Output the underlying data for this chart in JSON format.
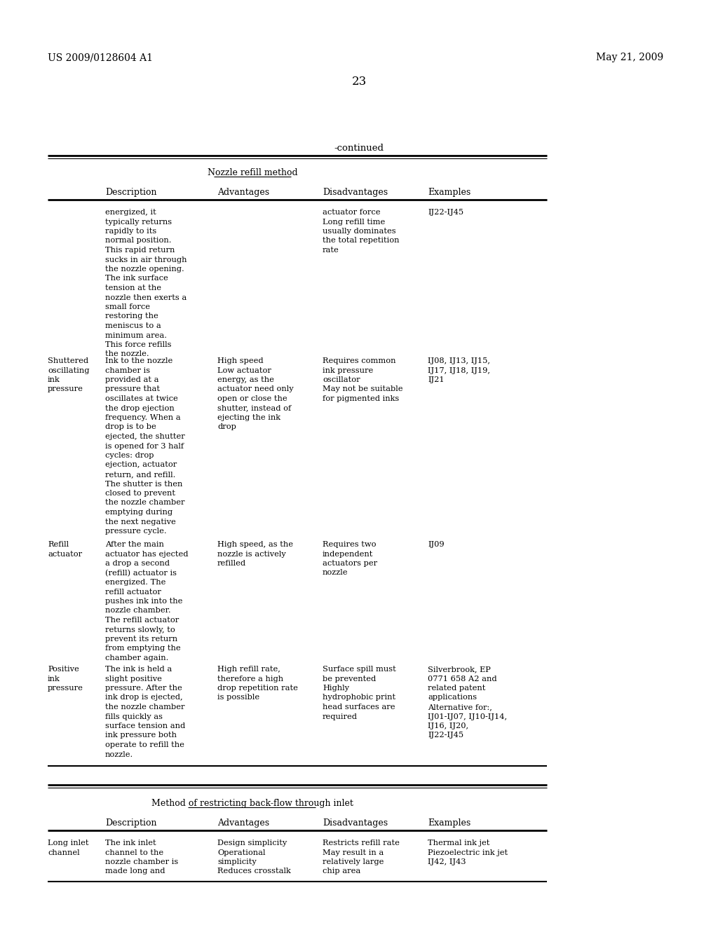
{
  "header_left": "US 2009/0128604 A1",
  "header_right": "May 21, 2009",
  "page_number": "23",
  "continued_label": "-continued",
  "table1_title": "Nozzle refill method",
  "table1_columns": [
    "Description",
    "Advantages",
    "Disadvantages",
    "Examples"
  ],
  "table1_rows": [
    {
      "label": "",
      "description": "energized, it\ntypically returns\nrapidly to its\nnormal position.\nThis rapid return\nsucks in air through\nthe nozzle opening.\nThe ink surface\ntension at the\nnozzle then exerts a\nsmall force\nrestoring the\nmeniscus to a\nminimum area.\nThis force refills\nthe nozzle.",
      "advantages": "",
      "disadvantages": "actuator force\nLong refill time\nusually dominates\nthe total repetition\nrate",
      "examples": "IJ22-IJ45"
    },
    {
      "label": "Shuttered\noscillating\nink\npressure",
      "description": "Ink to the nozzle\nchamber is\nprovided at a\npressure that\noscillates at twice\nthe drop ejection\nfrequency. When a\ndrop is to be\nejected, the shutter\nis opened for 3 half\ncycles: drop\nejection, actuator\nreturn, and refill.\nThe shutter is then\nclosed to prevent\nthe nozzle chamber\nemptying during\nthe next negative\npressure cycle.",
      "advantages": "High speed\nLow actuator\nenergy, as the\nactuator need only\nopen or close the\nshutter, instead of\nejecting the ink\ndrop",
      "disadvantages": "Requires common\nink pressure\noscillator\nMay not be suitable\nfor pigmented inks",
      "examples": "IJ08, IJ13, IJ15,\nIJ17, IJ18, IJ19,\nIJ21"
    },
    {
      "label": "Refill\nactuator",
      "description": "After the main\nactuator has ejected\na drop a second\n(refill) actuator is\nenergized. The\nrefill actuator\npushes ink into the\nnozzle chamber.\nThe refill actuator\nreturns slowly, to\nprevent its return\nfrom emptying the\nchamber again.",
      "advantages": "High speed, as the\nnozzle is actively\nrefilled",
      "disadvantages": "Requires two\nindependent\nactuators per\nnozzle",
      "examples": "IJ09"
    },
    {
      "label": "Positive\nink\npressure",
      "description": "The ink is held a\nslight positive\npressure. After the\nink drop is ejected,\nthe nozzle chamber\nfills quickly as\nsurface tension and\nink pressure both\noperate to refill the\nnozzle.",
      "advantages": "High refill rate,\ntherefore a high\ndrop repetition rate\nis possible",
      "disadvantages": "Surface spill must\nbe prevented\nHighly\nhydrophobic print\nhead surfaces are\nrequired",
      "examples": "Silverbrook, EP\n0771 658 A2 and\nrelated patent\napplications\nAlternative for:,\nIJ01-IJ07, IJ10-IJ14,\nIJ16, IJ20,\nIJ22-IJ45"
    }
  ],
  "table2_title": "Method of restricting back-flow through inlet",
  "table2_columns": [
    "Description",
    "Advantages",
    "Disadvantages",
    "Examples"
  ],
  "table2_rows": [
    {
      "label": "Long inlet\nchannel",
      "description": "The ink inlet\nchannel to the\nnozzle chamber is\nmade long and",
      "advantages": "Design simplicity\nOperational\nsimplicity\nReduces crosstalk",
      "disadvantages": "Restricts refill rate\nMay result in a\nrelatively large\nchip area",
      "examples": "Thermal ink jet\nPiezoelectric ink jet\nIJ42, IJ43"
    }
  ],
  "bg_color": "#ffffff",
  "text_color": "#000000"
}
